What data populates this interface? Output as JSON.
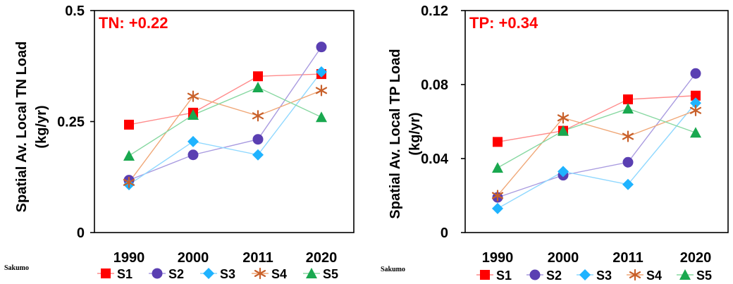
{
  "chart_data": [
    {
      "type": "line",
      "annotation": "TN: +0.22",
      "ylabel": "Spatial Av. Local TN Load (kg/yr)",
      "ylabel_lines": [
        "Spatial Av. Local TN Load",
        "(kg/yr)"
      ],
      "site": "Sakumo",
      "categories": [
        "1990",
        "2000",
        "2011",
        "2020"
      ],
      "ylim": [
        0,
        0.5
      ],
      "yticks": [
        0,
        0.25,
        0.5
      ],
      "ytick_labels": [
        "0",
        "0.25",
        "0.5"
      ],
      "grid": false,
      "legend_position": "bottom",
      "series": [
        {
          "name": "S1",
          "values": [
            0.243,
            0.27,
            0.352,
            0.357
          ]
        },
        {
          "name": "S2",
          "values": [
            0.118,
            0.175,
            0.21,
            0.418
          ]
        },
        {
          "name": "S3",
          "values": [
            0.108,
            0.205,
            0.175,
            0.362
          ]
        },
        {
          "name": "S4",
          "values": [
            0.113,
            0.307,
            0.263,
            0.32
          ]
        },
        {
          "name": "S5",
          "values": [
            0.173,
            0.265,
            0.327,
            0.26
          ]
        }
      ]
    },
    {
      "type": "line",
      "annotation": "TP: +0.34",
      "ylabel": "Spatial Av. Local TP Load (kg/yr)",
      "ylabel_lines": [
        "Spatial Av. Local TP Load",
        "(kg/yr)"
      ],
      "site": "Sakumo",
      "categories": [
        "1990",
        "2000",
        "2011",
        "2020"
      ],
      "ylim": [
        0,
        0.12
      ],
      "yticks": [
        0,
        0.04,
        0.08,
        0.12
      ],
      "ytick_labels": [
        "0",
        "0.04",
        "0.08",
        "0.12"
      ],
      "grid": false,
      "legend_position": "bottom",
      "series": [
        {
          "name": "S1",
          "values": [
            0.049,
            0.055,
            0.072,
            0.074
          ]
        },
        {
          "name": "S2",
          "values": [
            0.019,
            0.031,
            0.038,
            0.086
          ]
        },
        {
          "name": "S3",
          "values": [
            0.013,
            0.033,
            0.026,
            0.07
          ]
        },
        {
          "name": "S4",
          "values": [
            0.02,
            0.062,
            0.052,
            0.066
          ]
        },
        {
          "name": "S5",
          "values": [
            0.035,
            0.055,
            0.067,
            0.054
          ]
        }
      ]
    }
  ],
  "series_style": {
    "S1": {
      "color": "#ff0000",
      "line": "#ff8c8c",
      "marker": "square"
    },
    "S2": {
      "color": "#5a3fb2",
      "line": "#a99be0",
      "marker": "circle"
    },
    "S3": {
      "color": "#1fb3ff",
      "line": "#8fd8ff",
      "marker": "diamond"
    },
    "S4": {
      "color": "#c8602a",
      "line": "#f0a878",
      "marker": "star"
    },
    "S5": {
      "color": "#19a84f",
      "line": "#88d8a2",
      "marker": "triangle"
    }
  },
  "annotation_color": "#ff0000"
}
